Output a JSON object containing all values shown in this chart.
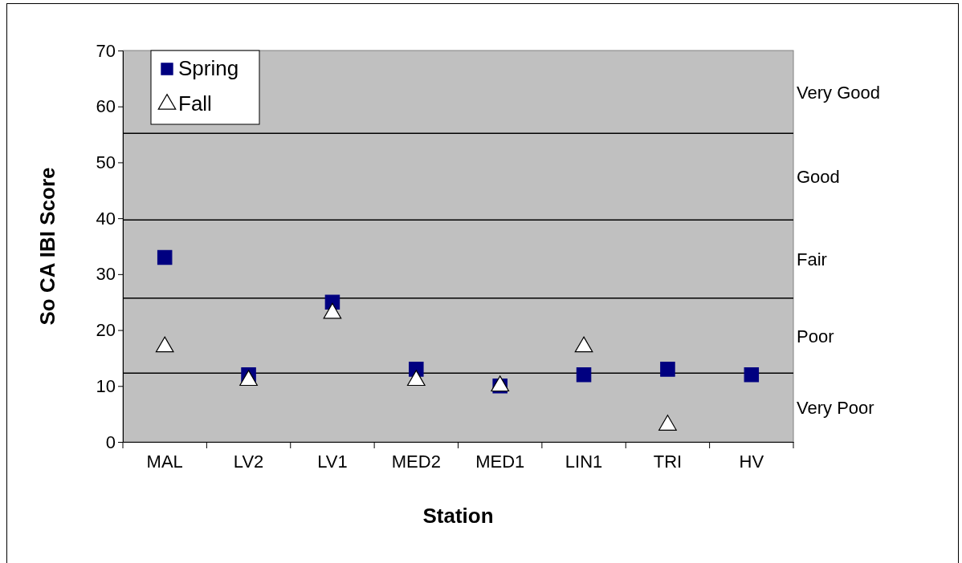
{
  "chart_data": {
    "type": "scatter",
    "xlabel": "Station",
    "ylabel": "So CA IBI Score",
    "categories": [
      "MAL",
      "LV2",
      "LV1",
      "MED2",
      "MED1",
      "LIN1",
      "TRI",
      "HV"
    ],
    "series": [
      {
        "name": "Spring",
        "color": "#000080",
        "marker": "square",
        "values": [
          33,
          12,
          25,
          13,
          10,
          12,
          13,
          12
        ]
      },
      {
        "name": "Fall",
        "color": "#ffffff",
        "marker": "triangle",
        "values": [
          17,
          11,
          23,
          11,
          10,
          17,
          3,
          null
        ]
      }
    ],
    "ylim": [
      0,
      70
    ],
    "yticks": [
      0,
      10,
      20,
      30,
      40,
      50,
      60,
      70
    ],
    "grid": false,
    "legend": "top left",
    "ref_lines": [
      {
        "axis": "y",
        "value": 55.2,
        "color": "#000000"
      },
      {
        "axis": "y",
        "value": 39.7,
        "color": "#000000"
      },
      {
        "axis": "y",
        "value": 25.7,
        "color": "#000000"
      },
      {
        "axis": "y",
        "value": 12.3,
        "color": "#000000"
      }
    ],
    "annotations": [
      "Very Good",
      "Good",
      "Fair",
      "Poor",
      "Very Poor"
    ]
  }
}
